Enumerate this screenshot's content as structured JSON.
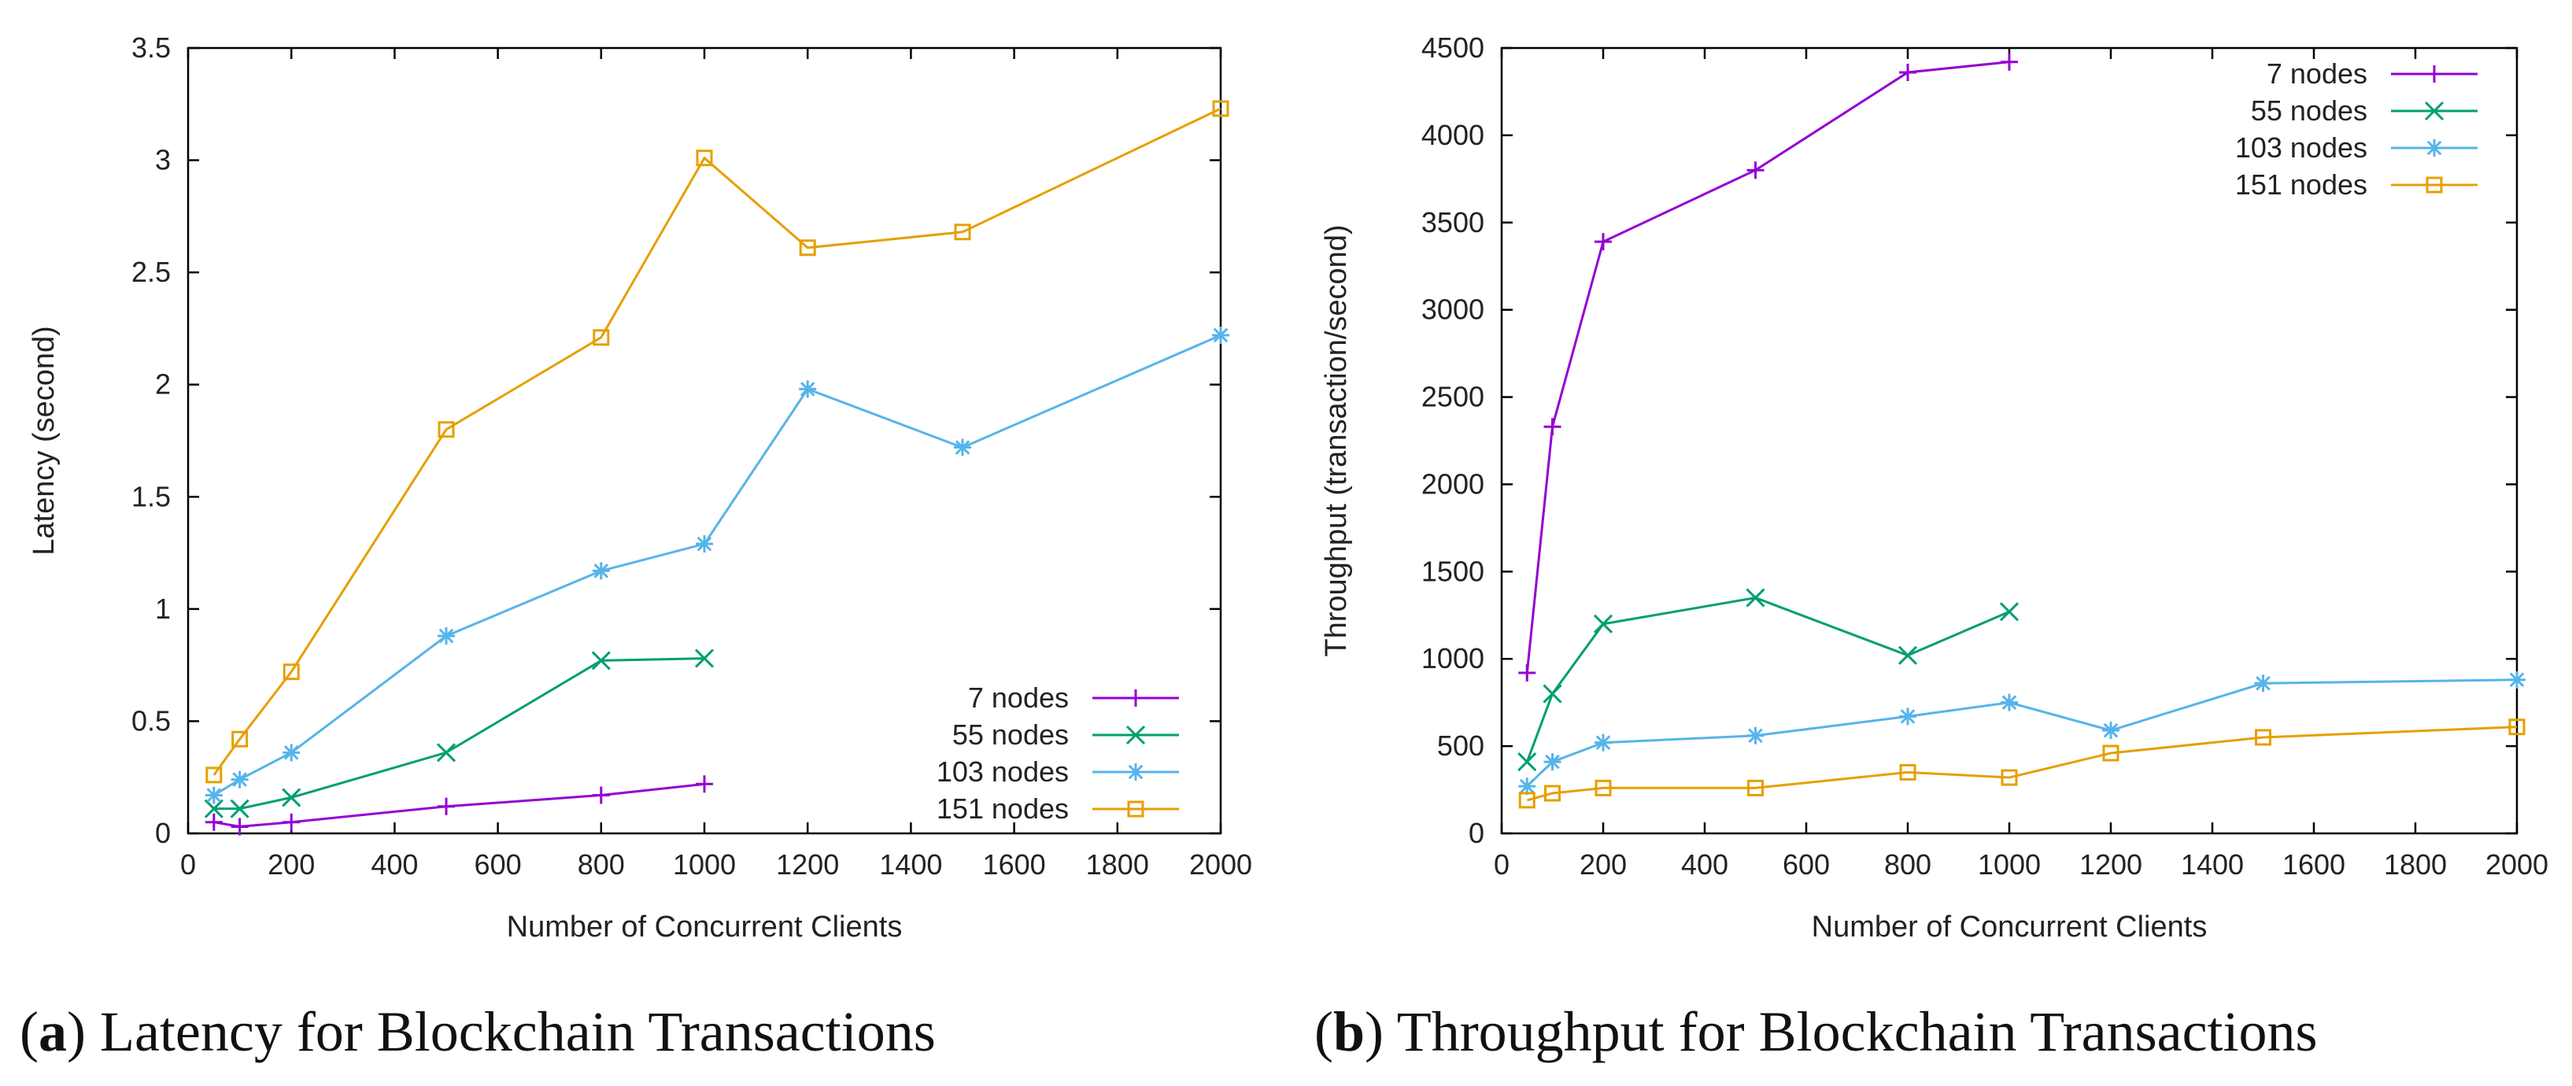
{
  "chart_data": [
    {
      "id": "a",
      "type": "line",
      "caption_letter": "a",
      "caption_text": "Latency for Blockchain Transactions",
      "title": "",
      "xlabel": "Number of Concurrent Clients",
      "ylabel": "Latency (second)",
      "xlim": [
        0,
        2000
      ],
      "ylim": [
        0,
        3.5
      ],
      "xticks": [
        "0",
        "200",
        "400",
        "600",
        "800",
        "1000",
        "1200",
        "1400",
        "1600",
        "1800",
        "2000"
      ],
      "yticks": [
        "0",
        "0.5",
        "1",
        "1.5",
        "2",
        "2.5",
        "3",
        "3.5"
      ],
      "legend_position": "bottom-right",
      "series": [
        {
          "name": "7 nodes",
          "color": "#9400d3",
          "marker": "plus",
          "x": [
            50,
            100,
            200,
            500,
            800,
            1000
          ],
          "y": [
            0.05,
            0.03,
            0.05,
            0.12,
            0.17,
            0.22
          ]
        },
        {
          "name": "55 nodes",
          "color": "#009e73",
          "marker": "cross",
          "x": [
            50,
            100,
            200,
            500,
            800,
            1000
          ],
          "y": [
            0.11,
            0.11,
            0.16,
            0.36,
            0.77,
            0.78
          ]
        },
        {
          "name": "103 nodes",
          "color": "#56b4e9",
          "marker": "star",
          "x": [
            50,
            100,
            200,
            500,
            800,
            1000,
            1200,
            1500,
            2000
          ],
          "y": [
            0.17,
            0.24,
            0.36,
            0.88,
            1.17,
            1.29,
            1.98,
            1.72,
            2.22
          ]
        },
        {
          "name": "151 nodes",
          "color": "#e69f00",
          "marker": "square",
          "x": [
            50,
            100,
            200,
            500,
            800,
            1000,
            1200,
            1500,
            2000
          ],
          "y": [
            0.26,
            0.42,
            0.72,
            1.8,
            2.21,
            3.01,
            2.61,
            2.68,
            3.23
          ]
        }
      ]
    },
    {
      "id": "b",
      "type": "line",
      "caption_letter": "b",
      "caption_text": "Throughput for Blockchain Transactions",
      "title": "",
      "xlabel": "Number of Concurrent Clients",
      "ylabel": "Throughput (transaction/second)",
      "xlim": [
        0,
        2000
      ],
      "ylim": [
        0,
        4500
      ],
      "xticks": [
        "0",
        "200",
        "400",
        "600",
        "800",
        "1000",
        "1200",
        "1400",
        "1600",
        "1800",
        "2000"
      ],
      "yticks": [
        "0",
        "500",
        "1000",
        "1500",
        "2000",
        "2500",
        "3000",
        "3500",
        "4000",
        "4500"
      ],
      "legend_position": "top-right",
      "series": [
        {
          "name": "7 nodes",
          "color": "#9400d3",
          "marker": "plus",
          "x": [
            50,
            100,
            200,
            500,
            800,
            1000
          ],
          "y": [
            920,
            2330,
            3390,
            3800,
            4360,
            4420
          ]
        },
        {
          "name": "55 nodes",
          "color": "#009e73",
          "marker": "cross",
          "x": [
            50,
            100,
            200,
            500,
            800,
            1000
          ],
          "y": [
            410,
            800,
            1200,
            1350,
            1020,
            1270
          ]
        },
        {
          "name": "103 nodes",
          "color": "#56b4e9",
          "marker": "star",
          "x": [
            50,
            100,
            200,
            500,
            800,
            1000,
            1200,
            1500,
            2000
          ],
          "y": [
            270,
            410,
            520,
            560,
            670,
            750,
            590,
            860,
            880
          ]
        },
        {
          "name": "151 nodes",
          "color": "#e69f00",
          "marker": "square",
          "x": [
            50,
            100,
            200,
            500,
            800,
            1000,
            1200,
            1500,
            2000
          ],
          "y": [
            190,
            230,
            260,
            260,
            350,
            320,
            460,
            550,
            610
          ]
        }
      ]
    }
  ]
}
